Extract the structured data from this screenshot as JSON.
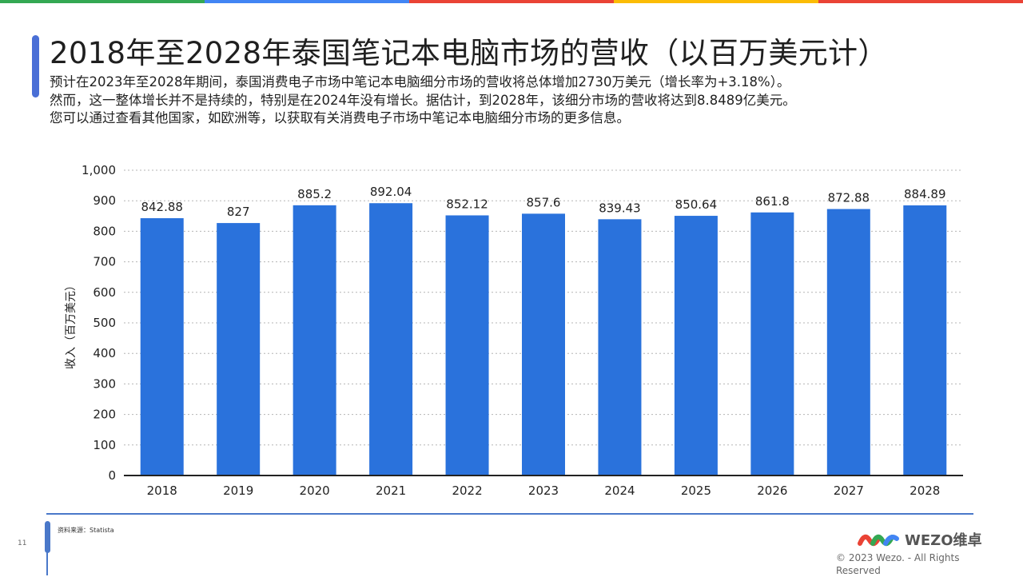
{
  "header": {
    "title": "2018年至2028年泰国笔记本电脑市场的营收（以百万美元计）",
    "description_lines": [
      "预计在2023年至2028年期间，泰国消费电子市场中笔记本电脑细分市场的营收将总体增加2730万美元（增长率为+3.18%）。",
      "然而，这一整体增长并不是持续的，特别是在2024年没有增长。据估计，到2028年，该细分市场的营收将达到8.8489亿美元。",
      "您可以通过查看其他国家，如欧洲等，以获取有关消费电子市场中笔记本电脑细分市场的更多信息。"
    ]
  },
  "chart_data": {
    "type": "bar",
    "categories": [
      "2018",
      "2019",
      "2020",
      "2021",
      "2022",
      "2023",
      "2024",
      "2025",
      "2026",
      "2027",
      "2028"
    ],
    "values": [
      842.88,
      827,
      885.2,
      892.04,
      852.12,
      857.6,
      839.43,
      850.64,
      861.8,
      872.88,
      884.89
    ],
    "value_labels": [
      "842.88",
      "827",
      "885.2",
      "892.04",
      "852.12",
      "857.6",
      "839.43",
      "850.64",
      "861.8",
      "872.88",
      "884.89"
    ],
    "ylabel": "收入（百万美元）",
    "xlabel": "",
    "ylim": [
      0,
      1000
    ],
    "yticks": [
      "0",
      "100",
      "200",
      "300",
      "400",
      "500",
      "600",
      "700",
      "800",
      "900",
      "1,000"
    ],
    "grid": true,
    "bar_color": "#2a72dc"
  },
  "footer": {
    "page_number": "11",
    "source": "资料来源：Statista",
    "logo_text": "WEZO维卓",
    "copyright": "© 2023 Wezo. - All Rights Reserved"
  },
  "colors": {
    "topbar": [
      "#34a853",
      "#4285f4",
      "#ea4335",
      "#fbbc05",
      "#ea4335"
    ],
    "accent": "#4a78c9"
  }
}
